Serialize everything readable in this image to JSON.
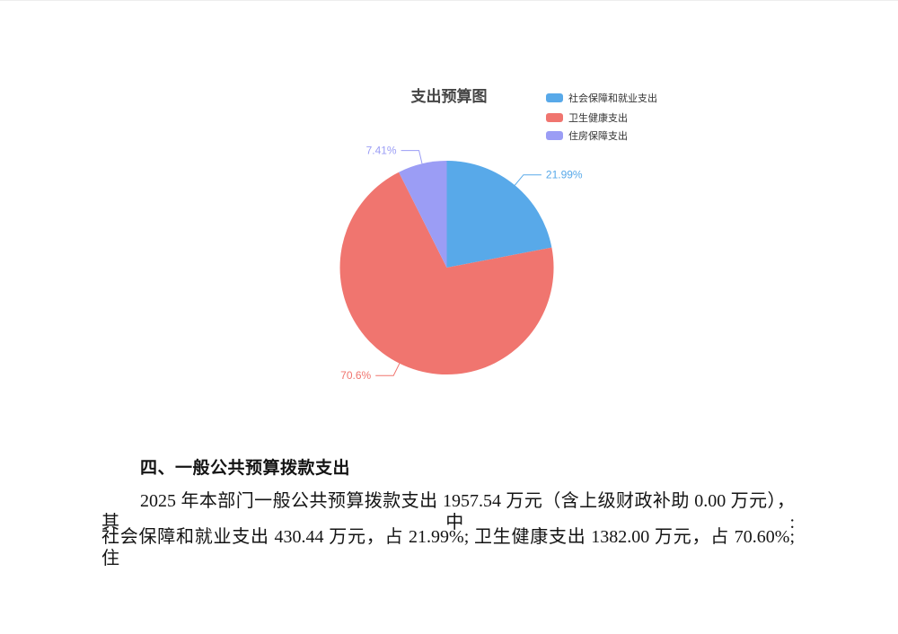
{
  "chart": {
    "title_color": "#464646",
    "legend_text_color": "#333333"
  },
  "chart_data": {
    "type": "pie",
    "title": "支出预算图",
    "legend_position": "top-right",
    "start_angle": "top",
    "direction": "clockwise",
    "value_unit": "percent",
    "series": [
      {
        "name": "社会保障和就业支出",
        "percent": 21.99,
        "label": "21.99%",
        "color": "#58A9E9"
      },
      {
        "name": "卫生健康支出",
        "percent": 70.6,
        "label": "70.6%",
        "color": "#F0756F"
      },
      {
        "name": "住房保障支出",
        "percent": 7.41,
        "label": "7.41%",
        "color": "#9B9DF5"
      }
    ]
  },
  "document": {
    "heading": "四、一般公共预算拨款支出",
    "paragraph_lines": [
      "2025 年本部门一般公共预算拨款支出 1957.54 万元（含上级财政补助 0.00 万元），其中:",
      "社会保障和就业支出 430.44 万元，占 21.99%; 卫生健康支出 1382.00 万元，占 70.60%; 住"
    ]
  }
}
